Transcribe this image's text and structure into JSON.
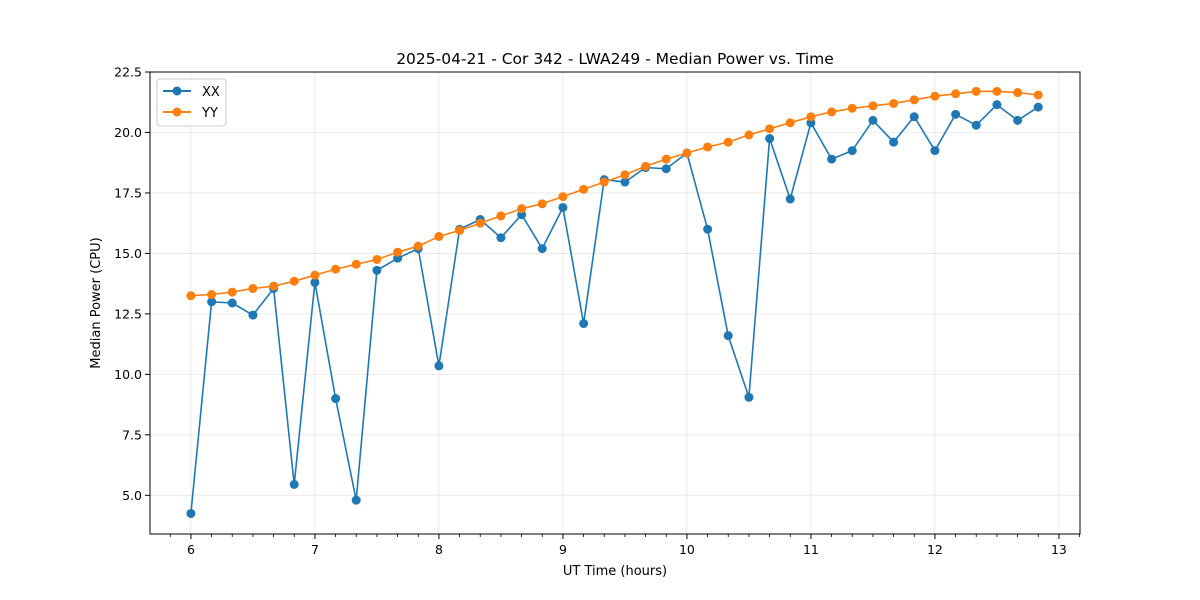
{
  "chart_data": {
    "type": "line",
    "title": "2025-04-21 - Cor 342 - LWA249 - Median Power vs. Time",
    "xlabel": "UT Time (hours)",
    "ylabel": "Median Power (CPU)",
    "xlim": [
      5.67,
      13.17
    ],
    "ylim": [
      3.4,
      22.5
    ],
    "xticks": [
      6,
      7,
      8,
      9,
      10,
      11,
      12,
      13
    ],
    "yticks": [
      5.0,
      7.5,
      10.0,
      12.5,
      15.0,
      17.5,
      20.0,
      22.5
    ],
    "xtick_labels": [
      "6",
      "7",
      "8",
      "9",
      "10",
      "11",
      "12",
      "13"
    ],
    "ytick_labels": [
      "5.0",
      "7.5",
      "10.0",
      "12.5",
      "15.0",
      "17.5",
      "20.0",
      "22.5"
    ],
    "grid": true,
    "legend_position": "top-left",
    "x": [
      6.0,
      6.167,
      6.333,
      6.5,
      6.667,
      6.833,
      7.0,
      7.167,
      7.333,
      7.5,
      7.667,
      7.833,
      8.0,
      8.167,
      8.333,
      8.5,
      8.667,
      8.833,
      9.0,
      9.167,
      9.333,
      9.5,
      9.667,
      9.833,
      10.0,
      10.167,
      10.333,
      10.5,
      10.667,
      10.833,
      11.0,
      11.167,
      11.333,
      11.5,
      11.667,
      11.833,
      12.0,
      12.167,
      12.333,
      12.5,
      12.667,
      12.833
    ],
    "series": [
      {
        "name": "XX",
        "color": "#1f77b4",
        "values": [
          4.25,
          13.0,
          12.95,
          12.45,
          13.55,
          5.45,
          13.8,
          9.0,
          4.8,
          14.3,
          14.8,
          15.2,
          10.35,
          16.0,
          16.4,
          15.65,
          16.6,
          15.2,
          16.9,
          12.1,
          18.05,
          17.95,
          18.55,
          18.5,
          19.15,
          16.0,
          11.6,
          9.05,
          19.75,
          17.25,
          20.4,
          18.9,
          19.25,
          20.5,
          19.6,
          20.65,
          19.25,
          20.75,
          20.3,
          21.15,
          20.5,
          21.05
        ]
      },
      {
        "name": "YY",
        "color": "#ff7f0e",
        "values": [
          13.25,
          13.3,
          13.4,
          13.55,
          13.65,
          13.85,
          14.1,
          14.35,
          14.55,
          14.75,
          15.05,
          15.3,
          15.7,
          15.95,
          16.25,
          16.55,
          16.85,
          17.05,
          17.35,
          17.65,
          17.95,
          18.25,
          18.6,
          18.9,
          19.15,
          19.4,
          19.6,
          19.9,
          20.15,
          20.4,
          20.65,
          20.85,
          21.0,
          21.1,
          21.2,
          21.35,
          21.5,
          21.6,
          21.7,
          21.7,
          21.65,
          21.55
        ]
      }
    ]
  }
}
